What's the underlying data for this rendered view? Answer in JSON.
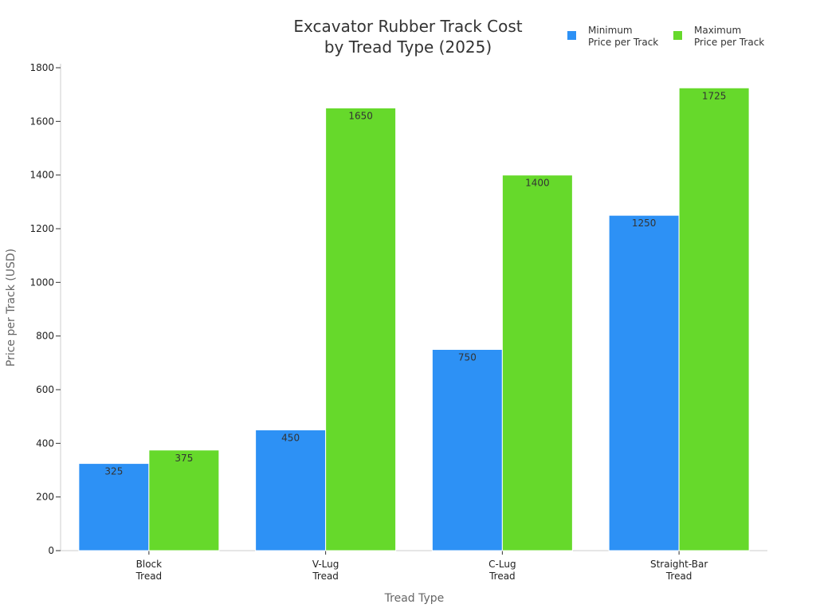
{
  "chart_data": {
    "type": "bar",
    "title": [
      "Excavator Rubber Track Cost",
      "by Tread Type (2025)"
    ],
    "xlabel": "Tread Type",
    "ylabel": "Price per Track (USD)",
    "ylim": [
      0,
      1800
    ],
    "yticks": [
      0,
      200,
      400,
      600,
      800,
      1000,
      1200,
      1400,
      1600,
      1800
    ],
    "categories": [
      [
        "Block",
        "Tread"
      ],
      [
        "V-Lug",
        "Tread"
      ],
      [
        "C-Lug",
        "Tread"
      ],
      [
        "Straight-Bar",
        "Tread"
      ]
    ],
    "series": [
      {
        "name": [
          "Minimum",
          "Price per Track"
        ],
        "color": "#2d91f5",
        "values": [
          325,
          450,
          750,
          1250
        ]
      },
      {
        "name": [
          "Maximum",
          "Price per Track"
        ],
        "color": "#66d92b",
        "values": [
          375,
          1650,
          1400,
          1725
        ]
      }
    ],
    "legend_position": "top-right",
    "grid": false
  }
}
